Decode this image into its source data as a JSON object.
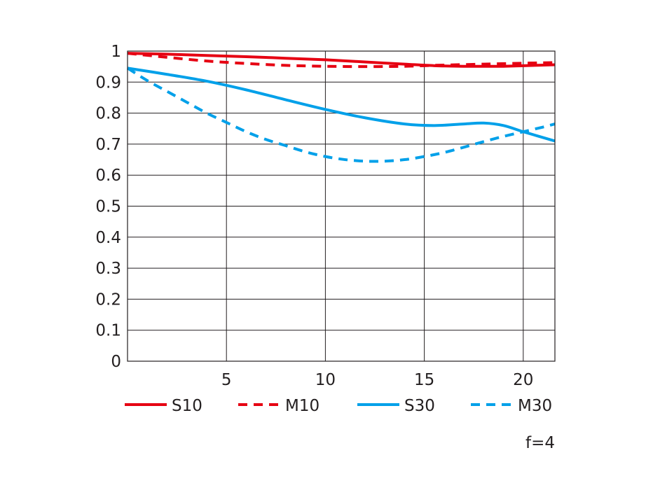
{
  "chart_data": {
    "type": "line",
    "title": "",
    "xlabel": "",
    "ylabel": "",
    "xlim": [
      0,
      21.6
    ],
    "ylim": [
      0,
      1
    ],
    "x_ticks": [
      5,
      10,
      15,
      20
    ],
    "x_tick_labels": [
      "5",
      "10",
      "15",
      "20"
    ],
    "y_ticks": [
      0,
      0.1,
      0.2,
      0.3,
      0.4,
      0.5,
      0.6,
      0.7,
      0.8,
      0.9,
      1
    ],
    "y_tick_labels": [
      "0",
      "0.1",
      "0.2",
      "0.3",
      "0.4",
      "0.5",
      "0.6",
      "0.7",
      "0.8",
      "0.9",
      "1"
    ],
    "grid": true,
    "legend_position": "bottom",
    "annotation": "f=4",
    "series": [
      {
        "name": "S10",
        "color": "#e60012",
        "style": "solid",
        "x": [
          0,
          2,
          4,
          6,
          8,
          10,
          12,
          14,
          15.5,
          17,
          18,
          19,
          20,
          21.6
        ],
        "y": [
          0.993,
          0.99,
          0.986,
          0.982,
          0.977,
          0.972,
          0.965,
          0.958,
          0.953,
          0.951,
          0.951,
          0.951,
          0.953,
          0.956
        ]
      },
      {
        "name": "M10",
        "color": "#e60012",
        "style": "dashed",
        "x": [
          0,
          2,
          4,
          6,
          8,
          10,
          12,
          14,
          15,
          16,
          18,
          20,
          21.6
        ],
        "y": [
          0.993,
          0.98,
          0.968,
          0.96,
          0.954,
          0.951,
          0.95,
          0.951,
          0.953,
          0.955,
          0.958,
          0.961,
          0.963
        ]
      },
      {
        "name": "S30",
        "color": "#00a0e9",
        "style": "solid",
        "x": [
          0,
          2,
          4,
          6,
          8,
          10,
          12,
          14,
          15.5,
          17,
          18,
          19,
          20,
          21.6
        ],
        "y": [
          0.945,
          0.925,
          0.903,
          0.875,
          0.843,
          0.812,
          0.785,
          0.765,
          0.76,
          0.765,
          0.768,
          0.76,
          0.74,
          0.71
        ]
      },
      {
        "name": "M30",
        "color": "#00a0e9",
        "style": "dashed",
        "x": [
          0,
          1,
          2,
          3,
          4,
          5,
          6,
          7,
          8,
          9,
          10,
          11,
          12,
          13,
          14,
          15,
          16,
          17,
          18,
          19,
          20,
          21,
          21.6
        ],
        "y": [
          0.945,
          0.905,
          0.87,
          0.835,
          0.8,
          0.77,
          0.74,
          0.715,
          0.695,
          0.675,
          0.66,
          0.65,
          0.645,
          0.645,
          0.65,
          0.66,
          0.673,
          0.69,
          0.708,
          0.725,
          0.74,
          0.755,
          0.765
        ]
      }
    ]
  }
}
